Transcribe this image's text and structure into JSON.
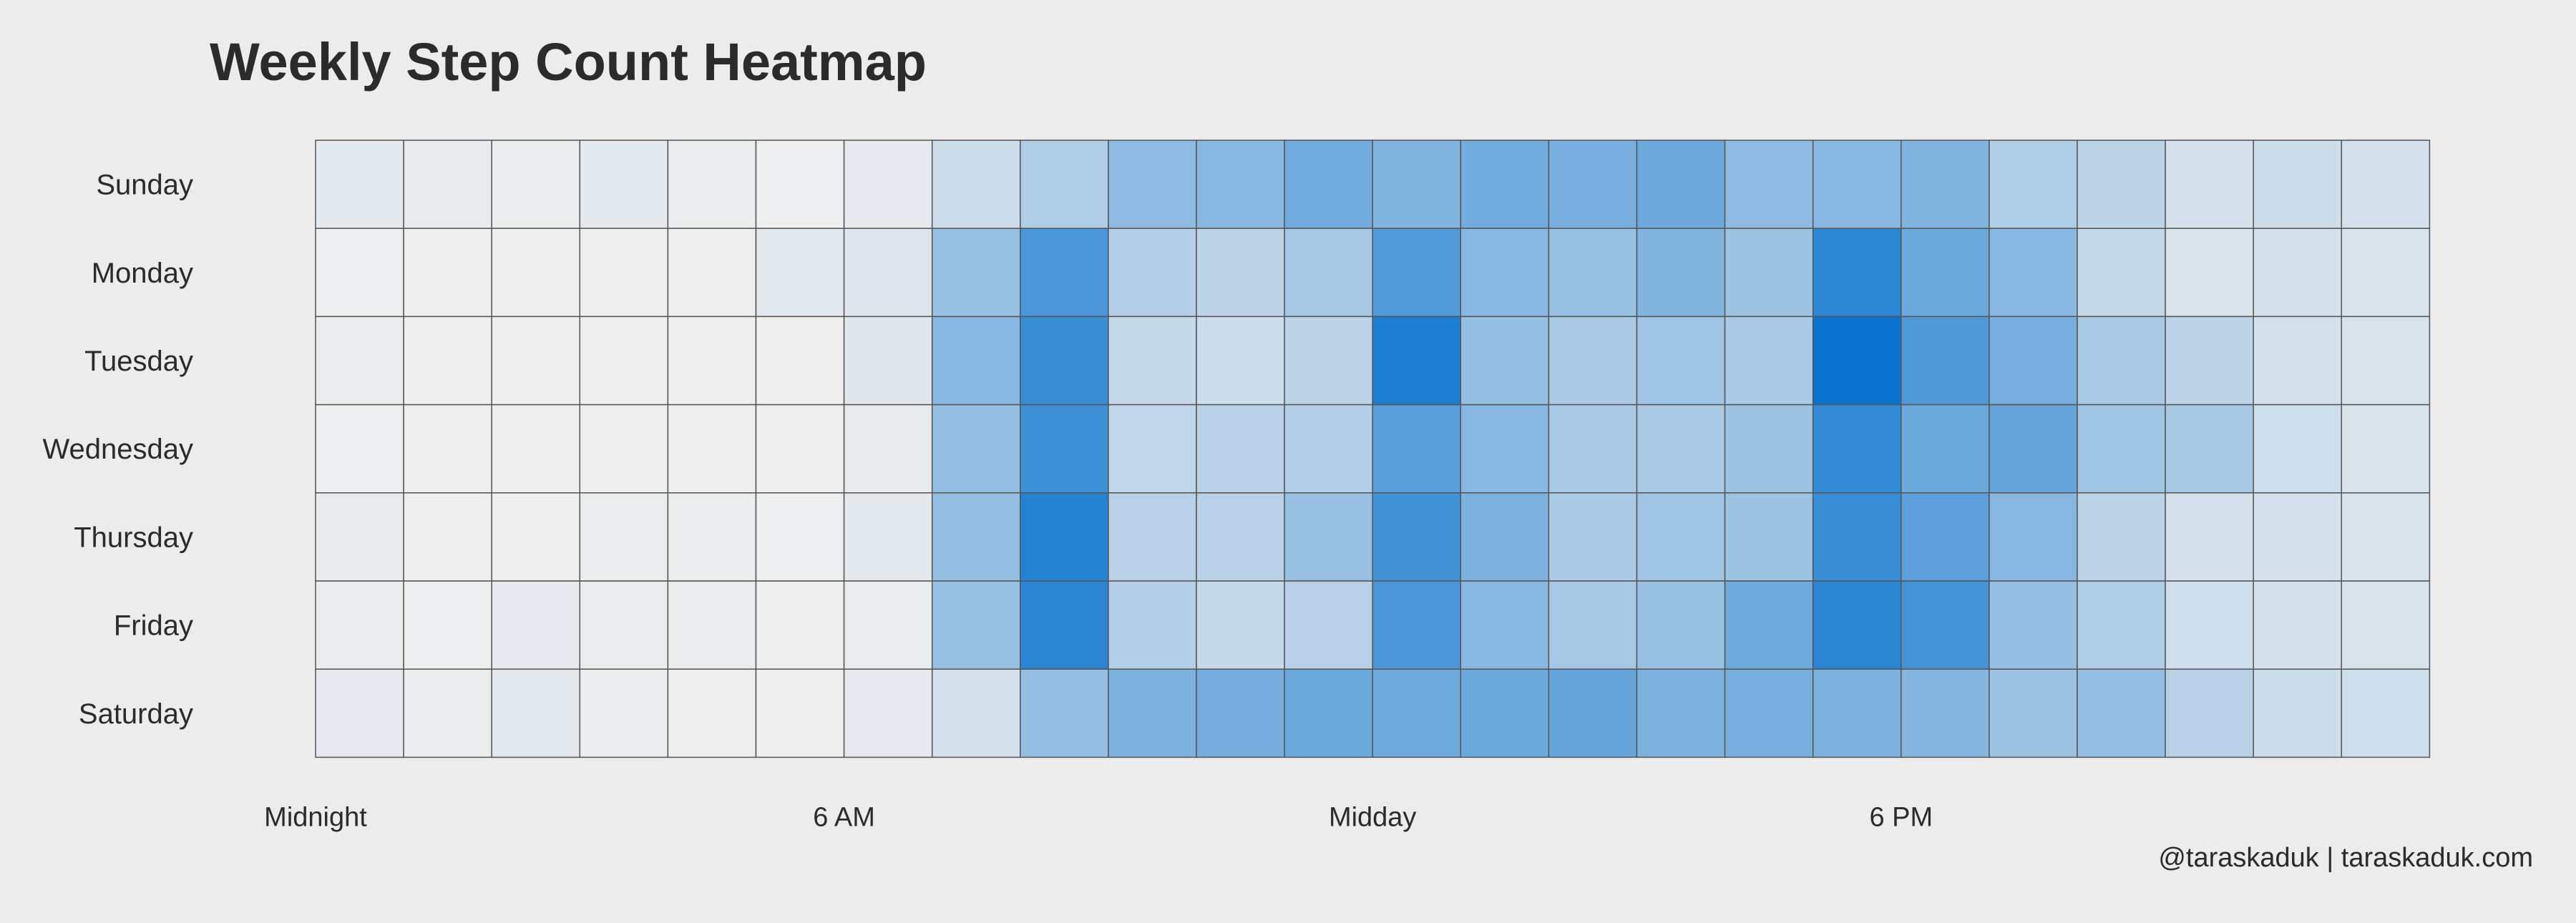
{
  "chart_data": {
    "type": "heatmap",
    "title": "Weekly Step Count Heatmap",
    "xlabel": "",
    "ylabel": "",
    "x_ticks": [
      "Midnight",
      "6 AM",
      "Midday",
      "6 PM"
    ],
    "x_tick_hours": [
      0,
      6,
      12,
      18
    ],
    "hours": [
      0,
      1,
      2,
      3,
      4,
      5,
      6,
      7,
      8,
      9,
      10,
      11,
      12,
      13,
      14,
      15,
      16,
      17,
      18,
      19,
      20,
      21,
      22,
      23
    ],
    "rows": [
      "Sunday",
      "Monday",
      "Tuesday",
      "Wednesday",
      "Thursday",
      "Friday",
      "Saturday"
    ],
    "values": [
      [
        0.05,
        0.03,
        0.02,
        0.05,
        0.02,
        0.01,
        0.04,
        0.15,
        0.28,
        0.42,
        0.45,
        0.55,
        0.48,
        0.55,
        0.52,
        0.57,
        0.42,
        0.45,
        0.48,
        0.28,
        0.22,
        0.12,
        0.15,
        0.12
      ],
      [
        0.01,
        0.0,
        0.0,
        0.0,
        0.0,
        0.05,
        0.07,
        0.38,
        0.72,
        0.26,
        0.22,
        0.32,
        0.68,
        0.45,
        0.38,
        0.48,
        0.36,
        0.85,
        0.58,
        0.45,
        0.18,
        0.1,
        0.12,
        0.1
      ],
      [
        0.02,
        0.0,
        0.0,
        0.0,
        0.0,
        0.0,
        0.06,
        0.45,
        0.8,
        0.18,
        0.15,
        0.22,
        0.92,
        0.4,
        0.3,
        0.35,
        0.3,
        1.0,
        0.7,
        0.52,
        0.3,
        0.22,
        0.12,
        0.1
      ],
      [
        0.01,
        0.0,
        0.0,
        0.0,
        0.0,
        0.0,
        0.03,
        0.4,
        0.78,
        0.2,
        0.24,
        0.26,
        0.66,
        0.45,
        0.3,
        0.3,
        0.36,
        0.82,
        0.58,
        0.6,
        0.35,
        0.32,
        0.14,
        0.1
      ],
      [
        0.03,
        0.0,
        0.0,
        0.02,
        0.02,
        0.01,
        0.05,
        0.4,
        0.88,
        0.24,
        0.24,
        0.38,
        0.76,
        0.5,
        0.3,
        0.35,
        0.36,
        0.8,
        0.64,
        0.45,
        0.22,
        0.12,
        0.12,
        0.1
      ],
      [
        0.02,
        0.01,
        0.04,
        0.02,
        0.02,
        0.0,
        0.02,
        0.38,
        0.86,
        0.26,
        0.18,
        0.24,
        0.72,
        0.45,
        0.32,
        0.38,
        0.56,
        0.86,
        0.75,
        0.4,
        0.28,
        0.14,
        0.12,
        0.1
      ],
      [
        0.04,
        0.02,
        0.05,
        0.02,
        0.0,
        0.0,
        0.04,
        0.12,
        0.4,
        0.5,
        0.54,
        0.58,
        0.56,
        0.58,
        0.6,
        0.5,
        0.52,
        0.5,
        0.46,
        0.36,
        0.4,
        0.24,
        0.15,
        0.14
      ]
    ],
    "color_low": "#efefef",
    "color_high": "#0b74cf",
    "grid_color": "#555555",
    "grid": true,
    "legend": "none"
  },
  "footer": "@taraskaduk | taraskaduk.com"
}
